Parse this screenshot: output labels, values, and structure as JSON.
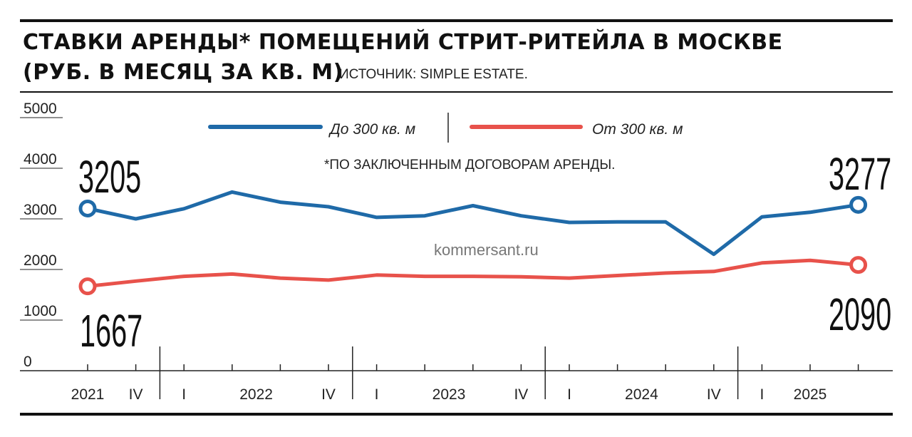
{
  "header": {
    "title_line1": "СТАВКИ АРЕНДЫ* ПОМЕЩЕНИЙ СТРИТ-РИТЕЙЛА В МОСКВЕ",
    "title_line2": "(РУБ. В МЕСЯЦ ЗА КВ. М)",
    "source": "ИСТОЧНИК: SIMPLE ESTATE."
  },
  "note": "*ПО ЗАКЛЮЧЕННЫМ ДОГОВОРАМ АРЕНДЫ.",
  "watermark": "kommersant.ru",
  "colors": {
    "small": "#1f6aa8",
    "large": "#e8524b",
    "ink": "#111111"
  },
  "chart_data": {
    "type": "line",
    "title": "СТАВКИ АРЕНДЫ* ПОМЕЩЕНИЙ СТРИТ-РИТЕЙЛА В МОСКВЕ (РУБ. В МЕСЯЦ ЗА КВ. М)",
    "ylim": [
      0,
      5000
    ],
    "yticks": [
      0,
      1000,
      2000,
      3000,
      4000,
      5000
    ],
    "ytick_labels": [
      "0",
      "1000",
      "2000",
      "3000",
      "4000",
      "5000"
    ],
    "x": [
      "2021 III",
      "2021 IV",
      "2022 I",
      "2022 II",
      "2022 III",
      "2022 IV",
      "2023 I",
      "2023 II",
      "2023 III",
      "2023 IV",
      "2024 I",
      "2024 II",
      "2024 III",
      "2024 IV",
      "2025 I",
      "2025 II",
      "2025 III"
    ],
    "x_labels": [
      {
        "label": "2021",
        "index": 0
      },
      {
        "label": "IV",
        "index": 1
      },
      {
        "label": "I",
        "index": 2
      },
      {
        "label": "2022",
        "index": 3.5
      },
      {
        "label": "IV",
        "index": 5
      },
      {
        "label": "I",
        "index": 6
      },
      {
        "label": "2023",
        "index": 7.5
      },
      {
        "label": "IV",
        "index": 9
      },
      {
        "label": "I",
        "index": 10
      },
      {
        "label": "2024",
        "index": 11.5
      },
      {
        "label": "IV",
        "index": 13
      },
      {
        "label": "I",
        "index": 14
      },
      {
        "label": "2025",
        "index": 15
      }
    ],
    "year_separators": [
      1.5,
      5.5,
      9.5,
      13.5
    ],
    "series": [
      {
        "name": "До 300 кв. м",
        "color": "#1f6aa8",
        "values": [
          3205,
          3000,
          3200,
          3530,
          3330,
          3240,
          3030,
          3060,
          3260,
          3060,
          2930,
          2940,
          2940,
          2300,
          3040,
          3130,
          3277
        ],
        "end_labels": {
          "first": "3205",
          "last": "3277"
        }
      },
      {
        "name": "От 300 кв. м",
        "color": "#e8524b",
        "values": [
          1667,
          1770,
          1865,
          1910,
          1830,
          1790,
          1890,
          1865,
          1865,
          1855,
          1830,
          1880,
          1930,
          1960,
          2130,
          2180,
          2090
        ],
        "end_labels": {
          "first": "1667",
          "last": "2090"
        }
      }
    ],
    "grid": false,
    "legend_position": "top-center"
  }
}
